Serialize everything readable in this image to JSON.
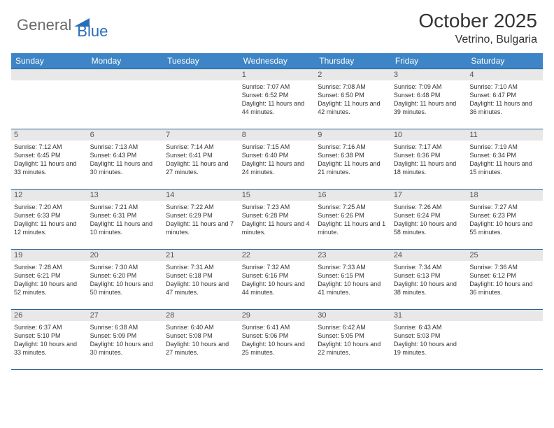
{
  "logo": {
    "text1": "General",
    "text2": "Blue",
    "color1": "#6b6b6b",
    "color2": "#2a6ebb",
    "triangle_color": "#2a6ebb"
  },
  "title": "October 2025",
  "location": "Vetrino, Bulgaria",
  "header_bg": "#3d85c6",
  "header_fg": "#ffffff",
  "border_color": "#2a5f8f",
  "daynum_bg": "#e8e8e8",
  "day_labels": [
    "Sunday",
    "Monday",
    "Tuesday",
    "Wednesday",
    "Thursday",
    "Friday",
    "Saturday"
  ],
  "weeks": [
    [
      null,
      null,
      null,
      {
        "n": "1",
        "sr": "Sunrise: 7:07 AM",
        "ss": "Sunset: 6:52 PM",
        "dl": "Daylight: 11 hours and 44 minutes."
      },
      {
        "n": "2",
        "sr": "Sunrise: 7:08 AM",
        "ss": "Sunset: 6:50 PM",
        "dl": "Daylight: 11 hours and 42 minutes."
      },
      {
        "n": "3",
        "sr": "Sunrise: 7:09 AM",
        "ss": "Sunset: 6:48 PM",
        "dl": "Daylight: 11 hours and 39 minutes."
      },
      {
        "n": "4",
        "sr": "Sunrise: 7:10 AM",
        "ss": "Sunset: 6:47 PM",
        "dl": "Daylight: 11 hours and 36 minutes."
      }
    ],
    [
      {
        "n": "5",
        "sr": "Sunrise: 7:12 AM",
        "ss": "Sunset: 6:45 PM",
        "dl": "Daylight: 11 hours and 33 minutes."
      },
      {
        "n": "6",
        "sr": "Sunrise: 7:13 AM",
        "ss": "Sunset: 6:43 PM",
        "dl": "Daylight: 11 hours and 30 minutes."
      },
      {
        "n": "7",
        "sr": "Sunrise: 7:14 AM",
        "ss": "Sunset: 6:41 PM",
        "dl": "Daylight: 11 hours and 27 minutes."
      },
      {
        "n": "8",
        "sr": "Sunrise: 7:15 AM",
        "ss": "Sunset: 6:40 PM",
        "dl": "Daylight: 11 hours and 24 minutes."
      },
      {
        "n": "9",
        "sr": "Sunrise: 7:16 AM",
        "ss": "Sunset: 6:38 PM",
        "dl": "Daylight: 11 hours and 21 minutes."
      },
      {
        "n": "10",
        "sr": "Sunrise: 7:17 AM",
        "ss": "Sunset: 6:36 PM",
        "dl": "Daylight: 11 hours and 18 minutes."
      },
      {
        "n": "11",
        "sr": "Sunrise: 7:19 AM",
        "ss": "Sunset: 6:34 PM",
        "dl": "Daylight: 11 hours and 15 minutes."
      }
    ],
    [
      {
        "n": "12",
        "sr": "Sunrise: 7:20 AM",
        "ss": "Sunset: 6:33 PM",
        "dl": "Daylight: 11 hours and 12 minutes."
      },
      {
        "n": "13",
        "sr": "Sunrise: 7:21 AM",
        "ss": "Sunset: 6:31 PM",
        "dl": "Daylight: 11 hours and 10 minutes."
      },
      {
        "n": "14",
        "sr": "Sunrise: 7:22 AM",
        "ss": "Sunset: 6:29 PM",
        "dl": "Daylight: 11 hours and 7 minutes."
      },
      {
        "n": "15",
        "sr": "Sunrise: 7:23 AM",
        "ss": "Sunset: 6:28 PM",
        "dl": "Daylight: 11 hours and 4 minutes."
      },
      {
        "n": "16",
        "sr": "Sunrise: 7:25 AM",
        "ss": "Sunset: 6:26 PM",
        "dl": "Daylight: 11 hours and 1 minute."
      },
      {
        "n": "17",
        "sr": "Sunrise: 7:26 AM",
        "ss": "Sunset: 6:24 PM",
        "dl": "Daylight: 10 hours and 58 minutes."
      },
      {
        "n": "18",
        "sr": "Sunrise: 7:27 AM",
        "ss": "Sunset: 6:23 PM",
        "dl": "Daylight: 10 hours and 55 minutes."
      }
    ],
    [
      {
        "n": "19",
        "sr": "Sunrise: 7:28 AM",
        "ss": "Sunset: 6:21 PM",
        "dl": "Daylight: 10 hours and 52 minutes."
      },
      {
        "n": "20",
        "sr": "Sunrise: 7:30 AM",
        "ss": "Sunset: 6:20 PM",
        "dl": "Daylight: 10 hours and 50 minutes."
      },
      {
        "n": "21",
        "sr": "Sunrise: 7:31 AM",
        "ss": "Sunset: 6:18 PM",
        "dl": "Daylight: 10 hours and 47 minutes."
      },
      {
        "n": "22",
        "sr": "Sunrise: 7:32 AM",
        "ss": "Sunset: 6:16 PM",
        "dl": "Daylight: 10 hours and 44 minutes."
      },
      {
        "n": "23",
        "sr": "Sunrise: 7:33 AM",
        "ss": "Sunset: 6:15 PM",
        "dl": "Daylight: 10 hours and 41 minutes."
      },
      {
        "n": "24",
        "sr": "Sunrise: 7:34 AM",
        "ss": "Sunset: 6:13 PM",
        "dl": "Daylight: 10 hours and 38 minutes."
      },
      {
        "n": "25",
        "sr": "Sunrise: 7:36 AM",
        "ss": "Sunset: 6:12 PM",
        "dl": "Daylight: 10 hours and 36 minutes."
      }
    ],
    [
      {
        "n": "26",
        "sr": "Sunrise: 6:37 AM",
        "ss": "Sunset: 5:10 PM",
        "dl": "Daylight: 10 hours and 33 minutes."
      },
      {
        "n": "27",
        "sr": "Sunrise: 6:38 AM",
        "ss": "Sunset: 5:09 PM",
        "dl": "Daylight: 10 hours and 30 minutes."
      },
      {
        "n": "28",
        "sr": "Sunrise: 6:40 AM",
        "ss": "Sunset: 5:08 PM",
        "dl": "Daylight: 10 hours and 27 minutes."
      },
      {
        "n": "29",
        "sr": "Sunrise: 6:41 AM",
        "ss": "Sunset: 5:06 PM",
        "dl": "Daylight: 10 hours and 25 minutes."
      },
      {
        "n": "30",
        "sr": "Sunrise: 6:42 AM",
        "ss": "Sunset: 5:05 PM",
        "dl": "Daylight: 10 hours and 22 minutes."
      },
      {
        "n": "31",
        "sr": "Sunrise: 6:43 AM",
        "ss": "Sunset: 5:03 PM",
        "dl": "Daylight: 10 hours and 19 minutes."
      },
      null
    ]
  ]
}
